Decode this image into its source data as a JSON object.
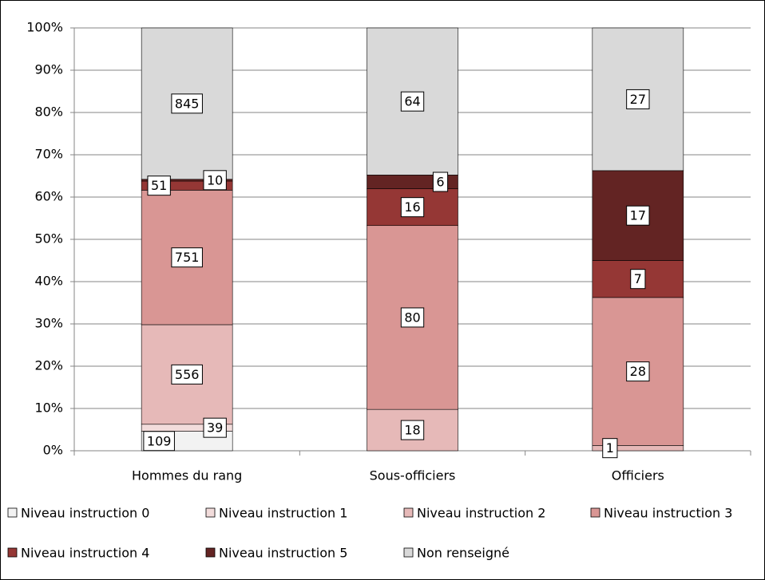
{
  "chart_data": {
    "type": "bar",
    "stacking": "percent",
    "categories": [
      "Hommes du rang",
      "Sous-officiers",
      "Officiers"
    ],
    "series": [
      {
        "name": "Niveau instruction 0",
        "color": "#f2f2f2",
        "values": [
          109,
          null,
          null
        ]
      },
      {
        "name": "Niveau instruction 1",
        "color": "#f2dcdb",
        "values": [
          39,
          null,
          null
        ]
      },
      {
        "name": "Niveau instruction 2",
        "color": "#e6b9b8",
        "values": [
          556,
          18,
          1
        ]
      },
      {
        "name": "Niveau instruction 3",
        "color": "#d99694",
        "values": [
          751,
          80,
          28
        ]
      },
      {
        "name": "Niveau instruction 4",
        "color": "#953735",
        "values": [
          51,
          16,
          7
        ]
      },
      {
        "name": "Niveau instruction 5",
        "color": "#632423",
        "values": [
          10,
          6,
          17
        ]
      },
      {
        "name": "Non renseigné",
        "color": "#d9d9d9",
        "values": [
          845,
          64,
          27
        ]
      }
    ],
    "ylim": [
      0,
      100
    ],
    "yticks": [
      {
        "value": 0,
        "label": "0%"
      },
      {
        "value": 10,
        "label": "10%"
      },
      {
        "value": 20,
        "label": "20%"
      },
      {
        "value": 30,
        "label": "30%"
      },
      {
        "value": 40,
        "label": "40%"
      },
      {
        "value": 50,
        "label": "50%"
      },
      {
        "value": 60,
        "label": "60%"
      },
      {
        "value": 70,
        "label": "70%"
      },
      {
        "value": 80,
        "label": "80%"
      },
      {
        "value": 90,
        "label": "90%"
      },
      {
        "value": 100,
        "label": "100%"
      }
    ],
    "grid": true,
    "legend": "bottom"
  }
}
